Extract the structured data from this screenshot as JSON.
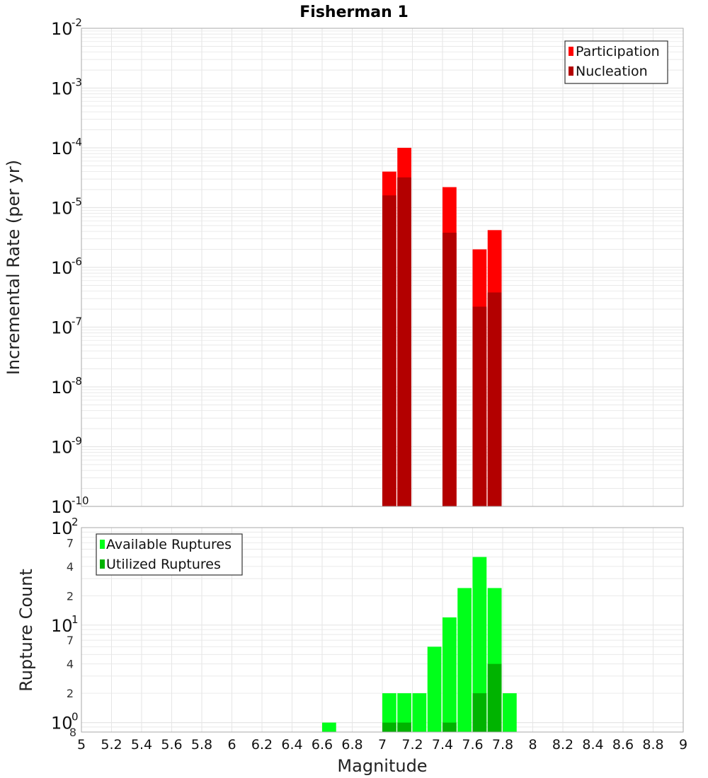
{
  "title": "Fisherman 1",
  "xlabel": "Magnitude",
  "colors": {
    "participation": "#ff0000",
    "nucleation": "#b30000",
    "available": "#00ff1a",
    "utilized": "#00b300",
    "grid": "#e6e6e6",
    "frame": "#aaaaaa"
  },
  "chart_data": [
    {
      "type": "bar",
      "ylabel": "Incremental Rate (per yr)",
      "yscale": "log",
      "ylim": [
        1e-10,
        0.01
      ],
      "xlim": [
        5,
        9
      ],
      "legend_position": "top-right",
      "x_ticks": [
        "5",
        "5.2",
        "5.4",
        "5.6",
        "5.8",
        "6",
        "6.2",
        "6.4",
        "6.6",
        "6.8",
        "7",
        "7.2",
        "7.4",
        "7.6",
        "7.8",
        "8",
        "8.2",
        "8.4",
        "8.6",
        "8.8",
        "9"
      ],
      "y_tick_exponents": [
        "-2",
        "-3",
        "-4",
        "-5",
        "-6",
        "-7",
        "-8",
        "-9",
        "-10"
      ],
      "x": [
        7.05,
        7.15,
        7.45,
        7.65,
        7.75
      ],
      "series": [
        {
          "name": "Participation",
          "values": [
            4e-05,
            0.0001,
            2.2e-05,
            2e-06,
            4.2e-06
          ]
        },
        {
          "name": "Nucleation",
          "values": [
            1.6e-05,
            3.2e-05,
            3.8e-06,
            2.2e-07,
            3.8e-07
          ]
        }
      ]
    },
    {
      "type": "bar",
      "ylabel": "Rupture Count",
      "yscale": "log",
      "ylim": [
        0.8,
        100
      ],
      "xlim": [
        5,
        9
      ],
      "legend_position": "top-left",
      "y_minor_ticks": [
        "7",
        "4",
        "2",
        "7",
        "4",
        "2",
        "8"
      ],
      "y_tick_exponents": [
        "2",
        "1",
        "0"
      ],
      "x": [
        6.65,
        7.05,
        7.15,
        7.25,
        7.35,
        7.45,
        7.55,
        7.65,
        7.75,
        7.85
      ],
      "series": [
        {
          "name": "Available Ruptures",
          "values": [
            1,
            2,
            2,
            2,
            6,
            12,
            24,
            50,
            24,
            2
          ]
        },
        {
          "name": "Utilized Ruptures",
          "values": [
            0,
            1,
            1,
            0,
            0,
            1,
            0,
            2,
            4,
            0
          ]
        }
      ]
    }
  ]
}
